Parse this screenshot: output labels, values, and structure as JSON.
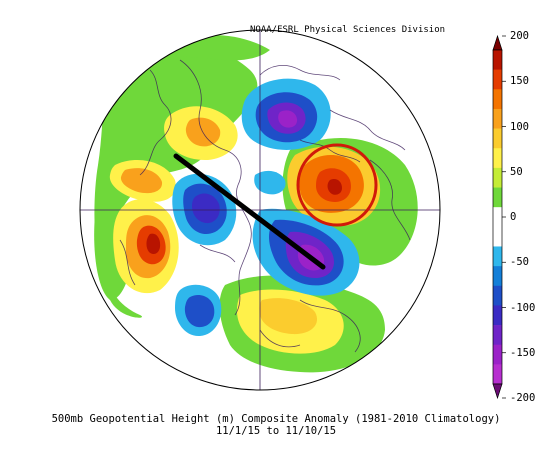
{
  "map": {
    "credit": "NOAA/ESRL Physical Sciences Division",
    "caption_line1": "500mb Geopotential Height (m) Composite Anomaly (1981-2010 Climatology)",
    "caption_line2": "11/1/15  to 11/10/15",
    "projection": "north-polar-stereographic",
    "annotations": {
      "trough_line": "thick black line",
      "ridge_circle": "red circle"
    }
  },
  "colorbar": {
    "labels": [
      "200",
      "150",
      "100",
      "50",
      "0",
      "-50",
      "-100",
      "-150",
      "-200"
    ],
    "colors": [
      "#7a0000",
      "#b81400",
      "#e53c00",
      "#f47400",
      "#f9a11c",
      "#fbcc2e",
      "#fff14a",
      "#c4ec36",
      "#6fd83a",
      "#ffffff",
      "#ffffff",
      "#2fb7ec",
      "#137fd8",
      "#1e4fc8",
      "#3b2bc4",
      "#6f24c8",
      "#9b22c8",
      "#b72fd0",
      "#6a0c74"
    ]
  }
}
